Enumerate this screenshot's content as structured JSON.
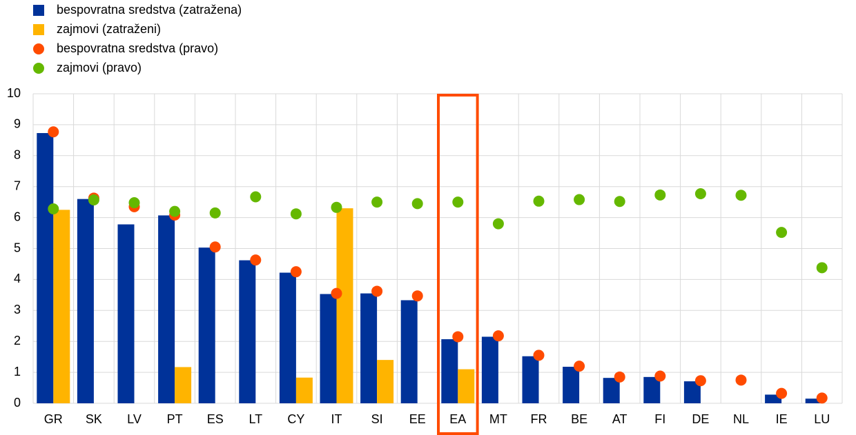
{
  "chart_data": {
    "type": "bar",
    "categories": [
      "GR",
      "SK",
      "LV",
      "PT",
      "ES",
      "LT",
      "CY",
      "IT",
      "SI",
      "EE",
      "EA",
      "MT",
      "FR",
      "BE",
      "AT",
      "FI",
      "DE",
      "NL",
      "IE",
      "LU"
    ],
    "series": [
      {
        "name": "bespovratna sredstva (zatražena)",
        "kind": "bar",
        "color": "#003299",
        "values": [
          8.73,
          6.6,
          5.78,
          6.07,
          5.03,
          4.62,
          4.22,
          3.53,
          3.55,
          3.33,
          2.07,
          2.15,
          1.52,
          1.18,
          0.82,
          0.85,
          0.71,
          null,
          0.28,
          0.15
        ]
      },
      {
        "name": "zajmovi (zatraženi)",
        "kind": "bar",
        "color": "#ffb400",
        "values": [
          6.25,
          null,
          null,
          1.17,
          null,
          null,
          0.83,
          6.3,
          1.4,
          null,
          1.1,
          null,
          null,
          null,
          null,
          null,
          null,
          null,
          null,
          null
        ]
      },
      {
        "name": "bespovratna sredstva (pravo)",
        "kind": "dot",
        "color": "#ff4b00",
        "values": [
          8.77,
          6.63,
          6.35,
          6.08,
          5.05,
          4.63,
          4.25,
          3.55,
          3.62,
          3.47,
          2.15,
          2.18,
          1.55,
          1.2,
          0.85,
          0.88,
          0.73,
          0.75,
          0.32,
          0.17
        ]
      },
      {
        "name": "zajmovi (pravo)",
        "kind": "dot",
        "color": "#65b800",
        "values": [
          6.28,
          6.57,
          6.48,
          6.2,
          6.15,
          6.67,
          6.12,
          6.33,
          6.5,
          6.45,
          6.5,
          5.8,
          6.53,
          6.58,
          6.52,
          6.73,
          6.77,
          6.72,
          5.52,
          4.38
        ]
      }
    ],
    "ylim": [
      0,
      10
    ],
    "yticks": [
      0,
      1,
      2,
      3,
      4,
      5,
      6,
      7,
      8,
      9,
      10
    ],
    "grid": true,
    "highlight": "EA",
    "highlight_color": "#ff4b00",
    "legend": "top-left"
  }
}
